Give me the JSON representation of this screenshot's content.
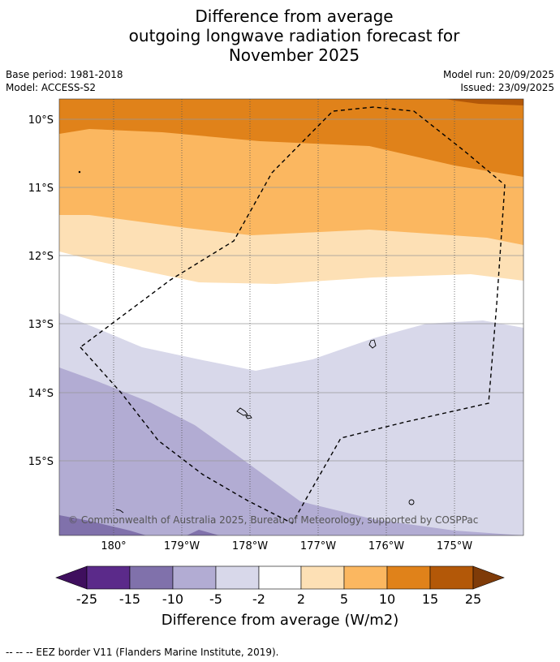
{
  "title": {
    "line1": "Difference from average",
    "line2": "outgoing longwave radiation forecast for",
    "line3": "November 2025"
  },
  "meta": {
    "base_period": "Base period: 1981-2018",
    "model": "Model: ACCESS-S2",
    "model_run": "Model run: 20/09/2025",
    "issued": "Issued: 23/09/2025"
  },
  "map": {
    "lat_labels": [
      "10°S",
      "11°S",
      "12°S",
      "13°S",
      "14°S",
      "15°S"
    ],
    "lon_labels": [
      "180°",
      "179°W",
      "178°W",
      "177°W",
      "176°W",
      "175°W"
    ],
    "copyright": "© Commonwealth of Australia 2025, Bureau of Meteorology, supported by COSPPac",
    "colors": {
      "lt_-25": "#3f0f5e",
      "m25_m15": "#5b2a8a",
      "m15_m10": "#8071ab",
      "m10_m5": "#b2acd3",
      "m5_m2": "#d8d8ea",
      "m2_2": "#ffffff",
      "p2_5": "#fde0b5",
      "p5_10": "#fbb760",
      "p10_15": "#e0821a",
      "p15_25": "#b35808",
      "gt_25": "#7f3b08"
    }
  },
  "legend": {
    "ticks": [
      "-25",
      "-15",
      "-10",
      "-5",
      "-2",
      "2",
      "5",
      "10",
      "15",
      "25"
    ],
    "label": "Difference from average (W/m2)"
  },
  "footnote": "--  --  -- EEZ border V11 (Flanders Marine Institute, 2019)."
}
